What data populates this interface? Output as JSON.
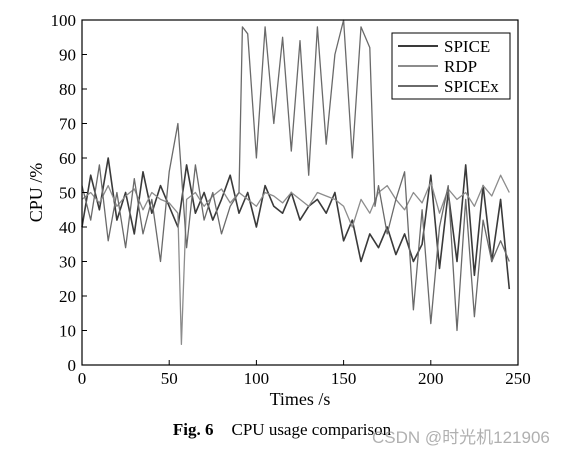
{
  "chart_data": {
    "type": "line",
    "xlabel": "Times /s",
    "ylabel": "CPU /%",
    "xlim": [
      0,
      250
    ],
    "ylim": [
      0,
      100
    ],
    "xticks": [
      0,
      50,
      100,
      150,
      200,
      250
    ],
    "yticks": [
      0,
      10,
      20,
      30,
      40,
      50,
      60,
      70,
      80,
      90,
      100
    ],
    "grid": false,
    "legend_position": "top-right",
    "series": [
      {
        "name": "SPICE",
        "color": "#3a3a3a",
        "x": [
          0,
          5,
          10,
          15,
          20,
          25,
          30,
          35,
          40,
          45,
          50,
          55,
          60,
          65,
          70,
          75,
          80,
          85,
          90,
          95,
          100,
          105,
          110,
          115,
          120,
          125,
          130,
          135,
          140,
          145,
          150,
          155,
          160,
          165,
          170,
          175,
          180,
          185,
          190,
          195,
          200,
          205,
          210,
          215,
          220,
          225,
          230,
          235,
          240,
          245
        ],
        "values": [
          40,
          55,
          45,
          60,
          42,
          50,
          38,
          56,
          44,
          52,
          46,
          40,
          58,
          44,
          50,
          42,
          48,
          55,
          44,
          50,
          40,
          52,
          46,
          44,
          50,
          42,
          46,
          48,
          44,
          50,
          36,
          42,
          30,
          38,
          34,
          40,
          32,
          38,
          30,
          35,
          55,
          28,
          50,
          30,
          58,
          26,
          52,
          30,
          48,
          22
        ]
      },
      {
        "name": "RDP",
        "color": "#8c8c8c",
        "x": [
          0,
          5,
          10,
          15,
          20,
          25,
          30,
          35,
          40,
          45,
          50,
          55,
          57,
          60,
          65,
          70,
          75,
          80,
          85,
          90,
          95,
          100,
          105,
          110,
          115,
          120,
          125,
          130,
          135,
          140,
          145,
          150,
          155,
          160,
          165,
          170,
          175,
          180,
          185,
          190,
          195,
          200,
          205,
          210,
          215,
          220,
          225,
          230,
          235,
          240,
          245
        ],
        "values": [
          48,
          50,
          47,
          52,
          46,
          49,
          51,
          45,
          50,
          48,
          47,
          44,
          6,
          48,
          50,
          46,
          49,
          51,
          47,
          50,
          48,
          46,
          50,
          49,
          47,
          50,
          48,
          46,
          50,
          49,
          48,
          46,
          40,
          48,
          44,
          50,
          52,
          48,
          45,
          50,
          47,
          53,
          44,
          51,
          48,
          50,
          46,
          52,
          49,
          55,
          50
        ]
      },
      {
        "name": "SPICEx",
        "color": "#6a6a6a",
        "x": [
          0,
          5,
          10,
          15,
          20,
          25,
          30,
          35,
          40,
          45,
          50,
          55,
          60,
          65,
          70,
          75,
          80,
          85,
          90,
          92,
          95,
          100,
          105,
          110,
          115,
          120,
          125,
          130,
          135,
          140,
          145,
          150,
          155,
          160,
          165,
          168,
          170,
          175,
          180,
          185,
          190,
          195,
          200,
          205,
          210,
          215,
          220,
          225,
          230,
          235,
          240,
          245
        ],
        "values": [
          52,
          42,
          58,
          36,
          50,
          34,
          54,
          38,
          48,
          30,
          56,
          70,
          34,
          58,
          42,
          50,
          38,
          46,
          50,
          98,
          96,
          60,
          98,
          70,
          95,
          62,
          94,
          55,
          98,
          64,
          90,
          100,
          60,
          98,
          92,
          46,
          52,
          38,
          48,
          56,
          16,
          45,
          12,
          40,
          52,
          10,
          48,
          14,
          42,
          30,
          36,
          30
        ]
      }
    ]
  },
  "caption": {
    "figure_number": "Fig. 6",
    "text": "CPU usage comparison"
  },
  "watermark": "CSDN @时光机121906"
}
